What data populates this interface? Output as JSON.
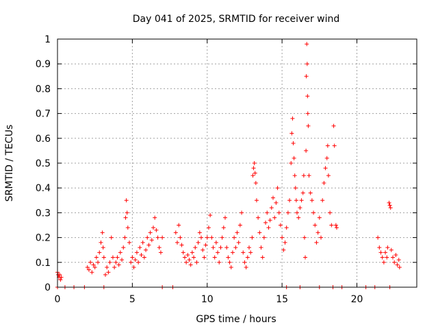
{
  "chart_data": {
    "type": "scatter",
    "title": "Day 041 of 2025, SRMTID for receiver wind",
    "xlabel": "GPS time / hours",
    "ylabel": "SRMTID / TECUs",
    "xlim": [
      0,
      24
    ],
    "ylim": [
      0,
      1
    ],
    "grid": true,
    "marker": "+",
    "color": "#ff0000",
    "x_ticks": [
      0,
      5,
      10,
      15,
      20
    ],
    "x_tick_labels": [
      "0",
      "5",
      "10",
      "15",
      "20"
    ],
    "y_ticks": [
      0,
      0.1,
      0.2,
      0.3,
      0.4,
      0.5,
      0.6,
      0.7,
      0.8,
      0.9,
      1
    ],
    "y_tick_labels": [
      "0",
      "0.1",
      "0.2",
      "0.3",
      "0.4",
      "0.5",
      "0.6",
      "0.7",
      "0.8",
      "0.9",
      "1"
    ],
    "series": [
      {
        "name": "SRMTID",
        "points": [
          [
            0.0,
            0.06
          ],
          [
            0.05,
            0.05
          ],
          [
            0.1,
            0.04
          ],
          [
            0.15,
            0.05
          ],
          [
            0.2,
            0.03
          ],
          [
            0.25,
            0.04
          ],
          [
            0.0,
            0.0
          ],
          [
            0.5,
            0.0
          ],
          [
            1.1,
            0.0
          ],
          [
            1.8,
            0.0
          ],
          [
            3.1,
            0.0
          ],
          [
            7.0,
            0.0
          ],
          [
            7.7,
            0.0
          ],
          [
            15.3,
            0.0
          ],
          [
            16.2,
            0.0
          ],
          [
            17.5,
            0.0
          ],
          [
            18.4,
            0.0
          ],
          [
            19.0,
            0.0
          ],
          [
            20.6,
            0.0
          ],
          [
            21.2,
            0.0
          ],
          [
            22.2,
            0.0
          ],
          [
            2.0,
            0.08
          ],
          [
            2.1,
            0.07
          ],
          [
            2.2,
            0.1
          ],
          [
            2.3,
            0.06
          ],
          [
            2.4,
            0.09
          ],
          [
            2.5,
            0.08
          ],
          [
            2.6,
            0.12
          ],
          [
            2.7,
            0.1
          ],
          [
            2.8,
            0.14
          ],
          [
            2.9,
            0.18
          ],
          [
            3.0,
            0.22
          ],
          [
            3.05,
            0.16
          ],
          [
            3.1,
            0.12
          ],
          [
            3.2,
            0.05
          ],
          [
            3.3,
            0.08
          ],
          [
            3.4,
            0.06
          ],
          [
            3.5,
            0.1
          ],
          [
            3.6,
            0.2
          ],
          [
            3.7,
            0.12
          ],
          [
            3.8,
            0.08
          ],
          [
            3.9,
            0.1
          ],
          [
            4.0,
            0.12
          ],
          [
            4.1,
            0.09
          ],
          [
            4.2,
            0.14
          ],
          [
            4.3,
            0.11
          ],
          [
            4.4,
            0.16
          ],
          [
            4.5,
            0.2
          ],
          [
            4.55,
            0.28
          ],
          [
            4.6,
            0.35
          ],
          [
            4.65,
            0.3
          ],
          [
            4.7,
            0.24
          ],
          [
            4.8,
            0.18
          ],
          [
            4.9,
            0.1
          ],
          [
            5.0,
            0.12
          ],
          [
            5.1,
            0.08
          ],
          [
            5.2,
            0.11
          ],
          [
            5.3,
            0.14
          ],
          [
            5.4,
            0.1
          ],
          [
            5.5,
            0.16
          ],
          [
            5.6,
            0.13
          ],
          [
            5.7,
            0.18
          ],
          [
            5.8,
            0.12
          ],
          [
            5.9,
            0.15
          ],
          [
            6.0,
            0.2
          ],
          [
            6.1,
            0.17
          ],
          [
            6.2,
            0.22
          ],
          [
            6.3,
            0.19
          ],
          [
            6.4,
            0.24
          ],
          [
            6.5,
            0.28
          ],
          [
            6.6,
            0.23
          ],
          [
            6.7,
            0.2
          ],
          [
            6.8,
            0.16
          ],
          [
            6.9,
            0.14
          ],
          [
            7.0,
            0.2
          ],
          [
            7.9,
            0.22
          ],
          [
            8.0,
            0.18
          ],
          [
            8.1,
            0.25
          ],
          [
            8.2,
            0.2
          ],
          [
            8.3,
            0.17
          ],
          [
            8.4,
            0.14
          ],
          [
            8.5,
            0.12
          ],
          [
            8.6,
            0.1
          ],
          [
            8.7,
            0.13
          ],
          [
            8.8,
            0.11
          ],
          [
            8.9,
            0.09
          ],
          [
            9.0,
            0.14
          ],
          [
            9.1,
            0.12
          ],
          [
            9.2,
            0.16
          ],
          [
            9.3,
            0.1
          ],
          [
            9.4,
            0.18
          ],
          [
            9.5,
            0.22
          ],
          [
            9.6,
            0.2
          ],
          [
            9.7,
            0.15
          ],
          [
            9.8,
            0.12
          ],
          [
            9.9,
            0.17
          ],
          [
            10.0,
            0.2
          ],
          [
            10.1,
            0.24
          ],
          [
            10.2,
            0.29
          ],
          [
            10.3,
            0.2
          ],
          [
            10.4,
            0.16
          ],
          [
            10.5,
            0.12
          ],
          [
            10.6,
            0.18
          ],
          [
            10.7,
            0.14
          ],
          [
            10.8,
            0.1
          ],
          [
            10.9,
            0.16
          ],
          [
            11.0,
            0.2
          ],
          [
            11.1,
            0.24
          ],
          [
            11.2,
            0.28
          ],
          [
            11.3,
            0.16
          ],
          [
            11.4,
            0.12
          ],
          [
            11.5,
            0.1
          ],
          [
            11.6,
            0.08
          ],
          [
            11.7,
            0.14
          ],
          [
            11.8,
            0.2
          ],
          [
            11.9,
            0.16
          ],
          [
            12.0,
            0.22
          ],
          [
            12.1,
            0.18
          ],
          [
            12.2,
            0.25
          ],
          [
            12.3,
            0.3
          ],
          [
            12.4,
            0.14
          ],
          [
            12.5,
            0.1
          ],
          [
            12.6,
            0.08
          ],
          [
            12.7,
            0.12
          ],
          [
            12.8,
            0.16
          ],
          [
            12.9,
            0.14
          ],
          [
            13.0,
            0.2
          ],
          [
            13.05,
            0.45
          ],
          [
            13.1,
            0.48
          ],
          [
            13.15,
            0.5
          ],
          [
            13.2,
            0.46
          ],
          [
            13.25,
            0.42
          ],
          [
            13.3,
            0.35
          ],
          [
            13.4,
            0.28
          ],
          [
            13.5,
            0.22
          ],
          [
            13.6,
            0.16
          ],
          [
            13.7,
            0.12
          ],
          [
            13.8,
            0.2
          ],
          [
            13.9,
            0.26
          ],
          [
            14.0,
            0.3
          ],
          [
            14.1,
            0.24
          ],
          [
            14.2,
            0.27
          ],
          [
            14.3,
            0.32
          ],
          [
            14.4,
            0.36
          ],
          [
            14.5,
            0.28
          ],
          [
            14.6,
            0.34
          ],
          [
            14.7,
            0.4
          ],
          [
            14.8,
            0.3
          ],
          [
            14.9,
            0.25
          ],
          [
            15.0,
            0.2
          ],
          [
            15.1,
            0.15
          ],
          [
            15.2,
            0.18
          ],
          [
            15.3,
            0.24
          ],
          [
            15.4,
            0.3
          ],
          [
            15.5,
            0.35
          ],
          [
            15.6,
            0.5
          ],
          [
            15.65,
            0.62
          ],
          [
            15.7,
            0.68
          ],
          [
            15.75,
            0.58
          ],
          [
            15.8,
            0.52
          ],
          [
            15.85,
            0.45
          ],
          [
            15.9,
            0.4
          ],
          [
            15.95,
            0.35
          ],
          [
            16.0,
            0.3
          ],
          [
            16.1,
            0.28
          ],
          [
            16.2,
            0.32
          ],
          [
            16.3,
            0.35
          ],
          [
            16.4,
            0.38
          ],
          [
            16.45,
            0.45
          ],
          [
            16.5,
            0.2
          ],
          [
            16.55,
            0.12
          ],
          [
            16.6,
            0.55
          ],
          [
            16.62,
            0.85
          ],
          [
            16.65,
            0.98
          ],
          [
            16.68,
            0.9
          ],
          [
            16.7,
            0.77
          ],
          [
            16.72,
            0.7
          ],
          [
            16.75,
            0.65
          ],
          [
            16.8,
            0.45
          ],
          [
            16.9,
            0.38
          ],
          [
            17.0,
            0.35
          ],
          [
            17.1,
            0.3
          ],
          [
            17.2,
            0.25
          ],
          [
            17.3,
            0.18
          ],
          [
            17.4,
            0.22
          ],
          [
            17.5,
            0.28
          ],
          [
            17.6,
            0.2
          ],
          [
            17.7,
            0.35
          ],
          [
            17.8,
            0.42
          ],
          [
            17.9,
            0.48
          ],
          [
            18.0,
            0.52
          ],
          [
            18.05,
            0.57
          ],
          [
            18.1,
            0.45
          ],
          [
            18.2,
            0.3
          ],
          [
            18.3,
            0.25
          ],
          [
            18.45,
            0.65
          ],
          [
            18.5,
            0.57
          ],
          [
            18.6,
            0.25
          ],
          [
            18.65,
            0.24
          ],
          [
            21.4,
            0.2
          ],
          [
            21.5,
            0.16
          ],
          [
            21.6,
            0.14
          ],
          [
            21.7,
            0.12
          ],
          [
            21.8,
            0.1
          ],
          [
            21.9,
            0.14
          ],
          [
            22.0,
            0.12
          ],
          [
            22.05,
            0.16
          ],
          [
            22.15,
            0.34
          ],
          [
            22.2,
            0.33
          ],
          [
            22.25,
            0.32
          ],
          [
            22.3,
            0.15
          ],
          [
            22.4,
            0.12
          ],
          [
            22.5,
            0.1
          ],
          [
            22.6,
            0.13
          ],
          [
            22.7,
            0.09
          ],
          [
            22.8,
            0.11
          ],
          [
            22.85,
            0.08
          ]
        ]
      }
    ]
  }
}
